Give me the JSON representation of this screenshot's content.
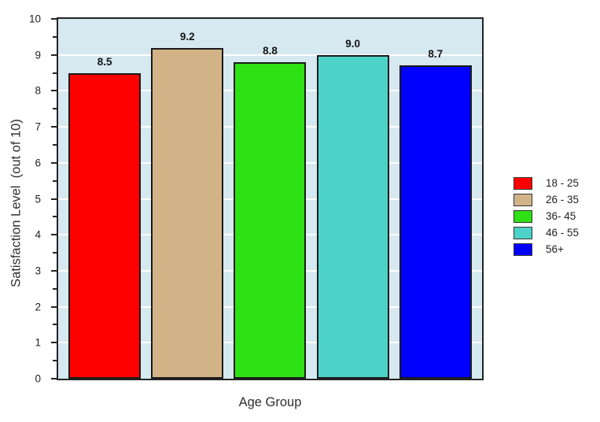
{
  "chart": {
    "xlabel": "Age Group",
    "ylabel": "Satisfaction Level  (out of 10)"
  },
  "chart_data": {
    "type": "bar",
    "title": "",
    "categories": [
      "18 - 25",
      "26 - 35",
      "36- 45",
      "46 - 55",
      "56+"
    ],
    "values": [
      8.5,
      9.2,
      8.8,
      9.0,
      8.7
    ],
    "value_labels": [
      "8.5",
      "9.2",
      "8.8",
      "9.0",
      "8.7"
    ],
    "bar_colors": [
      "#fe0000",
      "#d2b287",
      "#2de114",
      "#4dd2c8",
      "#0000fe"
    ],
    "xlabel": "Age Group",
    "ylabel": "Satisfaction Level  (out of 10)",
    "ylim": [
      0,
      10
    ],
    "ytick_interval": 1,
    "minor_tick_interval": 0.5,
    "yticks": [
      0,
      1,
      2,
      3,
      4,
      5,
      6,
      7,
      8,
      9,
      10
    ],
    "grid": true,
    "grid_color": "#ffffff",
    "plot_background": "#d6e8f0",
    "bar_border_color": "#1b1b1b",
    "legend_position": "right"
  }
}
